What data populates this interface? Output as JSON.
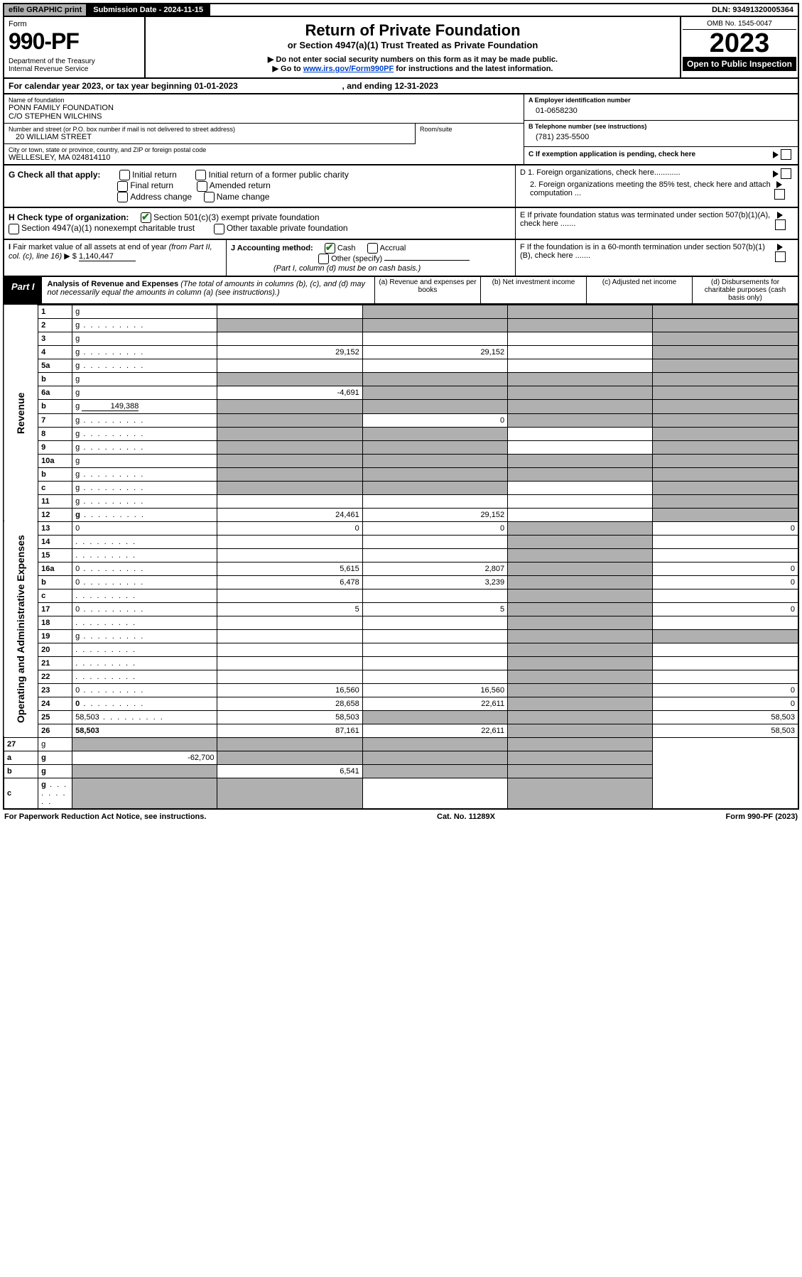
{
  "topbar": {
    "efile": "efile GRAPHIC print",
    "submission": "Submission Date - 2024-11-15",
    "dln": "DLN: 93491320005364"
  },
  "header": {
    "form_label": "Form",
    "form_no": "990-PF",
    "dept": "Department of the Treasury\nInternal Revenue Service",
    "title": "Return of Private Foundation",
    "subtitle": "or Section 4947(a)(1) Trust Treated as Private Foundation",
    "note1": "▶ Do not enter social security numbers on this form as it may be made public.",
    "note2": "▶ Go to ",
    "note2_link": "www.irs.gov/Form990PF",
    "note2_tail": " for instructions and the latest information.",
    "omb": "OMB No. 1545-0047",
    "year": "2023",
    "inspect": "Open to Public Inspection"
  },
  "calrow": {
    "prefix": "For calendar year 2023, or tax year beginning ",
    "begin": "01-01-2023",
    "mid": " , and ending ",
    "end": "12-31-2023"
  },
  "id": {
    "name_lbl": "Name of foundation",
    "name": "PONN FAMILY FOUNDATION\nC/O STEPHEN WILCHINS",
    "addr_lbl": "Number and street (or P.O. box number if mail is not delivered to street address)",
    "addr": "20 WILLIAM STREET",
    "room_lbl": "Room/suite",
    "city_lbl": "City or town, state or province, country, and ZIP or foreign postal code",
    "city": "WELLESLEY, MA  024814110",
    "ein_lbl": "A Employer identification number",
    "ein": "01-0658230",
    "tel_lbl": "B Telephone number (see instructions)",
    "tel": "(781) 235-5500",
    "c_lbl": "C If exemption application is pending, check here"
  },
  "g": {
    "label": "G Check all that apply:",
    "opts": [
      "Initial return",
      "Initial return of a former public charity",
      "Final return",
      "Amended return",
      "Address change",
      "Name change"
    ],
    "d1": "D 1. Foreign organizations, check here............",
    "d2": "2. Foreign organizations meeting the 85% test, check here and attach computation ...",
    "e": "E  If private foundation status was terminated under section 507(b)(1)(A), check here .......",
    "f": "F  If the foundation is in a 60-month termination under section 507(b)(1)(B), check here ......."
  },
  "h": {
    "lbl": "H Check type of organization:",
    "opt1": "Section 501(c)(3) exempt private foundation",
    "opt2": "Section 4947(a)(1) nonexempt charitable trust",
    "opt3": "Other taxable private foundation"
  },
  "i": {
    "lbl": "I Fair market value of all assets at end of year (from Part II, col. (c), line 16) ▶ $",
    "val": "1,140,447"
  },
  "j": {
    "lbl": "J Accounting method:",
    "cash": "Cash",
    "accrual": "Accrual",
    "other": "Other (specify)",
    "note": "(Part I, column (d) must be on cash basis.)"
  },
  "part1": {
    "tag": "Part I",
    "title": "Analysis of Revenue and Expenses",
    "title_note": " (The total of amounts in columns (b), (c), and (d) may not necessarily equal the amounts in column (a) (see instructions).)",
    "col_a": "(a)  Revenue and expenses per books",
    "col_b": "(b)  Net investment income",
    "col_c": "(c)  Adjusted net income",
    "col_d": "(d)  Disbursements for charitable purposes (cash basis only)"
  },
  "sidelabels": {
    "rev": "Revenue",
    "exp": "Operating and Administrative Expenses"
  },
  "rows": [
    {
      "n": "1",
      "d": "g",
      "a": "",
      "b": "g",
      "c": "g"
    },
    {
      "n": "2",
      "d": "g",
      "dots": true,
      "a": "g",
      "b": "g",
      "c": "g",
      "bold_not": true
    },
    {
      "n": "3",
      "d": "g",
      "a": "",
      "b": "",
      "c": ""
    },
    {
      "n": "4",
      "d": "g",
      "dots": true,
      "a": "29,152",
      "b": "29,152",
      "c": ""
    },
    {
      "n": "5a",
      "d": "g",
      "dots": true,
      "a": "",
      "b": "",
      "c": ""
    },
    {
      "n": "b",
      "d": "g",
      "inset": true,
      "a": "g",
      "b": "g",
      "c": "g"
    },
    {
      "n": "6a",
      "d": "g",
      "a": "-4,691",
      "b": "g",
      "c": "g"
    },
    {
      "n": "b",
      "d": "g",
      "inset": true,
      "inset_val": "149,388",
      "a": "g",
      "b": "g",
      "c": "g"
    },
    {
      "n": "7",
      "d": "g",
      "dots": true,
      "a": "g",
      "b": "0",
      "c": "g"
    },
    {
      "n": "8",
      "d": "g",
      "dots": true,
      "a": "g",
      "b": "g",
      "c": ""
    },
    {
      "n": "9",
      "d": "g",
      "dots": true,
      "a": "g",
      "b": "g",
      "c": ""
    },
    {
      "n": "10a",
      "d": "g",
      "inset": true,
      "a": "g",
      "b": "g",
      "c": "g"
    },
    {
      "n": "b",
      "d": "g",
      "dots": true,
      "inset": true,
      "a": "g",
      "b": "g",
      "c": "g"
    },
    {
      "n": "c",
      "d": "g",
      "dots": true,
      "a": "g",
      "b": "g",
      "c": ""
    },
    {
      "n": "11",
      "d": "g",
      "dots": true,
      "a": "",
      "b": "",
      "c": ""
    },
    {
      "n": "12",
      "d": "g",
      "dots": true,
      "bold": true,
      "a": "24,461",
      "b": "29,152",
      "c": ""
    }
  ],
  "exprows": [
    {
      "n": "13",
      "d": "0",
      "a": "0",
      "b": "0",
      "c": "g"
    },
    {
      "n": "14",
      "d": "",
      "dots": true,
      "a": "",
      "b": "",
      "c": "g"
    },
    {
      "n": "15",
      "d": "",
      "dots": true,
      "a": "",
      "b": "",
      "c": "g"
    },
    {
      "n": "16a",
      "d": "0",
      "dots": true,
      "a": "5,615",
      "b": "2,807",
      "c": "g"
    },
    {
      "n": "b",
      "d": "0",
      "dots": true,
      "a": "6,478",
      "b": "3,239",
      "c": "g"
    },
    {
      "n": "c",
      "d": "",
      "dots": true,
      "a": "",
      "b": "",
      "c": "g"
    },
    {
      "n": "17",
      "d": "0",
      "dots": true,
      "a": "5",
      "b": "5",
      "c": "g"
    },
    {
      "n": "18",
      "d": "",
      "dots": true,
      "a": "",
      "b": "",
      "c": "g"
    },
    {
      "n": "19",
      "d": "g",
      "dots": true,
      "a": "",
      "b": "",
      "c": "g"
    },
    {
      "n": "20",
      "d": "",
      "dots": true,
      "a": "",
      "b": "",
      "c": "g"
    },
    {
      "n": "21",
      "d": "",
      "dots": true,
      "a": "",
      "b": "",
      "c": "g"
    },
    {
      "n": "22",
      "d": "",
      "dots": true,
      "a": "",
      "b": "",
      "c": "g"
    },
    {
      "n": "23",
      "d": "0",
      "dots": true,
      "a": "16,560",
      "b": "16,560",
      "c": "g"
    },
    {
      "n": "24",
      "d": "0",
      "dots": true,
      "bold": true,
      "a": "28,658",
      "b": "22,611",
      "c": "g"
    },
    {
      "n": "25",
      "d": "58,503",
      "dots": true,
      "a": "58,503",
      "b": "g",
      "c": "g"
    },
    {
      "n": "26",
      "d": "58,503",
      "bold": true,
      "a": "87,161",
      "b": "22,611",
      "c": "g"
    }
  ],
  "netrows": [
    {
      "n": "27",
      "d": "g",
      "a": "g",
      "b": "g",
      "c": "g"
    },
    {
      "n": "a",
      "d": "g",
      "bold": true,
      "a": "-62,700",
      "b": "g",
      "c": "g"
    },
    {
      "n": "b",
      "d": "g",
      "bold": true,
      "a": "g",
      "b": "6,541",
      "c": "g"
    },
    {
      "n": "c",
      "d": "g",
      "dots": true,
      "bold": true,
      "a": "g",
      "b": "g",
      "c": ""
    }
  ],
  "footer": {
    "left": "For Paperwork Reduction Act Notice, see instructions.",
    "mid": "Cat. No. 11289X",
    "right": "Form 990-PF (2023)"
  },
  "colors": {
    "grey": "#b0b0b0",
    "link": "#0044cc",
    "check": "#1a7f1a"
  }
}
